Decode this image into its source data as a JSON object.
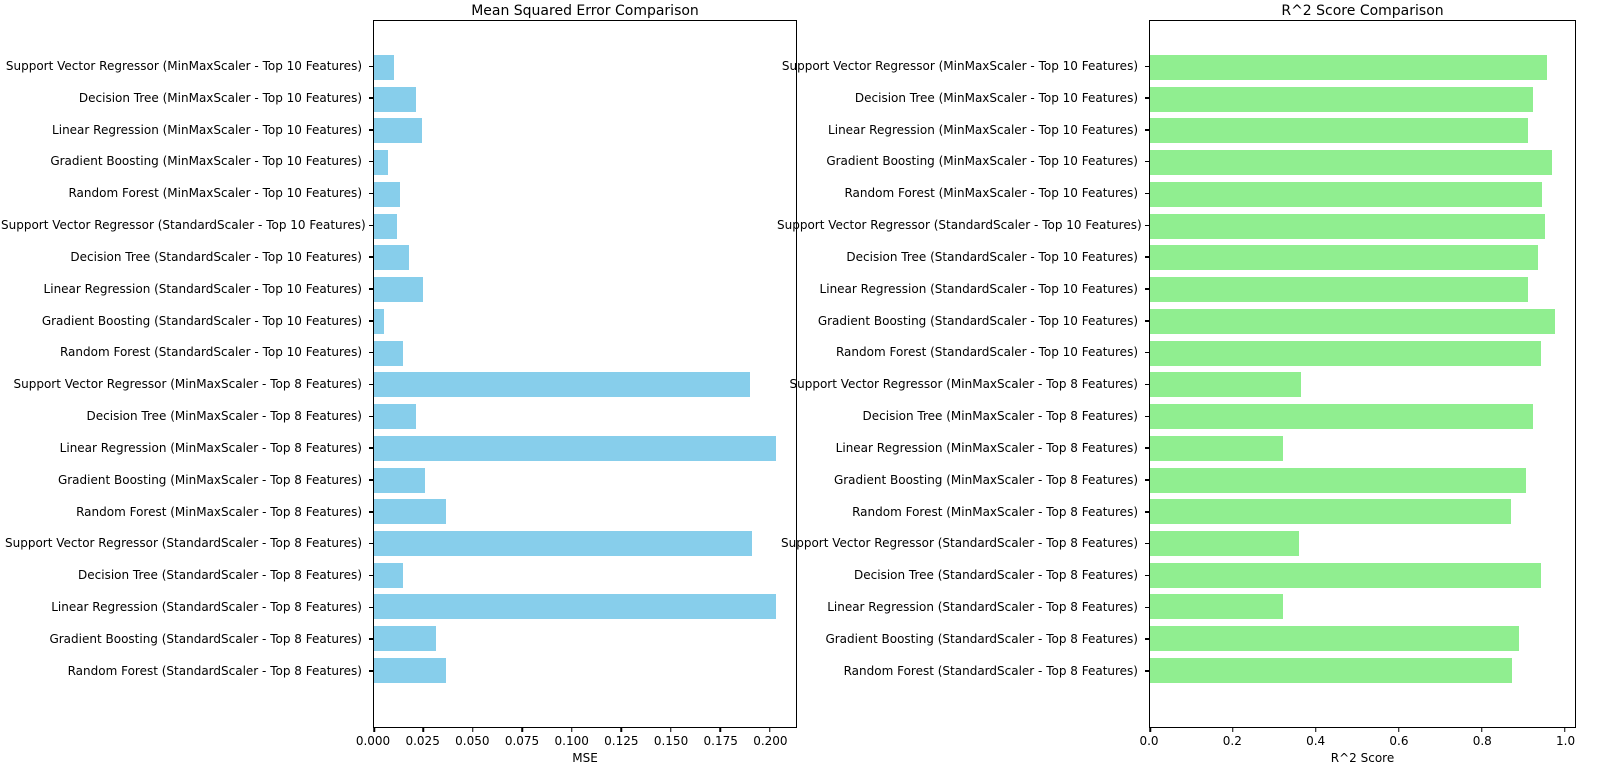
{
  "figure": {
    "background": "#ffffff",
    "text_color": "#000000"
  },
  "chart_data": [
    {
      "type": "bar",
      "orientation": "horizontal",
      "title": "Mean Squared Error Comparison",
      "xlabel": "MSE",
      "bar_color": "#87CEEB",
      "grid": false,
      "legend": null,
      "xlim": [
        0,
        0.2134
      ],
      "xticks": [
        0,
        0.025,
        0.05,
        0.075,
        0.1,
        0.125,
        0.15,
        0.175,
        0.2
      ],
      "xtick_labels": [
        "0.000",
        "0.025",
        "0.050",
        "0.075",
        "0.100",
        "0.125",
        "0.150",
        "0.175",
        "0.200"
      ],
      "categories": [
        "Support Vector Regressor (MinMaxScaler - Top 10 Features)",
        "Decision Tree (MinMaxScaler - Top 10 Features)",
        "Linear Regression (MinMaxScaler - Top 10 Features)",
        "Gradient Boosting (MinMaxScaler - Top 10 Features)",
        "Random Forest (MinMaxScaler - Top 10 Features)",
        "Support Vector Regressor (StandardScaler - Top 10 Features)",
        "Decision Tree (StandardScaler - Top 10 Features)",
        "Linear Regression (StandardScaler - Top 10 Features)",
        "Gradient Boosting (StandardScaler - Top 10 Features)",
        "Random Forest (StandardScaler - Top 10 Features)",
        "Support Vector Regressor (MinMaxScaler - Top 8 Features)",
        "Decision Tree (MinMaxScaler - Top 8 Features)",
        "Linear Regression (MinMaxScaler - Top 8 Features)",
        "Gradient Boosting (MinMaxScaler - Top 8 Features)",
        "Random Forest (MinMaxScaler - Top 8 Features)",
        "Support Vector Regressor (StandardScaler - Top 8 Features)",
        "Decision Tree (StandardScaler - Top 8 Features)",
        "Linear Regression (StandardScaler - Top 8 Features)",
        "Gradient Boosting (StandardScaler - Top 8 Features)",
        "Random Forest (StandardScaler - Top 8 Features)"
      ],
      "values": [
        0.0103,
        0.021,
        0.0245,
        0.007,
        0.0133,
        0.0117,
        0.0175,
        0.0248,
        0.005,
        0.0147,
        0.19,
        0.021,
        0.2032,
        0.0257,
        0.0365,
        0.1909,
        0.0147,
        0.2032,
        0.0315,
        0.0365
      ]
    },
    {
      "type": "bar",
      "orientation": "horizontal",
      "title": "R^2 Score Comparison",
      "xlabel": "R^2 Score",
      "bar_color": "#90EE90",
      "grid": false,
      "legend": null,
      "xlim": [
        0,
        1.025
      ],
      "xticks": [
        0,
        0.2,
        0.4,
        0.6,
        0.8,
        1.0
      ],
      "xtick_labels": [
        "0.0",
        "0.2",
        "0.4",
        "0.6",
        "0.8",
        "1.0"
      ],
      "categories": [
        "Support Vector Regressor (MinMaxScaler - Top 10 Features)",
        "Decision Tree (MinMaxScaler - Top 10 Features)",
        "Linear Regression (MinMaxScaler - Top 10 Features)",
        "Gradient Boosting (MinMaxScaler - Top 10 Features)",
        "Random Forest (MinMaxScaler - Top 10 Features)",
        "Support Vector Regressor (StandardScaler - Top 10 Features)",
        "Decision Tree (StandardScaler - Top 10 Features)",
        "Linear Regression (StandardScaler - Top 10 Features)",
        "Gradient Boosting (StandardScaler - Top 10 Features)",
        "Random Forest (StandardScaler - Top 10 Features)",
        "Support Vector Regressor (MinMaxScaler - Top 8 Features)",
        "Decision Tree (MinMaxScaler - Top 8 Features)",
        "Linear Regression (MinMaxScaler - Top 8 Features)",
        "Gradient Boosting (MinMaxScaler - Top 8 Features)",
        "Random Forest (MinMaxScaler - Top 8 Features)",
        "Support Vector Regressor (StandardScaler - Top 8 Features)",
        "Decision Tree (StandardScaler - Top 8 Features)",
        "Linear Regression (StandardScaler - Top 8 Features)",
        "Gradient Boosting (StandardScaler - Top 8 Features)",
        "Random Forest (StandardScaler - Top 8 Features)"
      ],
      "values": [
        0.957,
        0.923,
        0.911,
        0.969,
        0.946,
        0.952,
        0.935,
        0.911,
        0.976,
        0.942,
        0.363,
        0.923,
        0.32,
        0.907,
        0.871,
        0.36,
        0.944,
        0.32,
        0.889,
        0.874
      ]
    }
  ]
}
